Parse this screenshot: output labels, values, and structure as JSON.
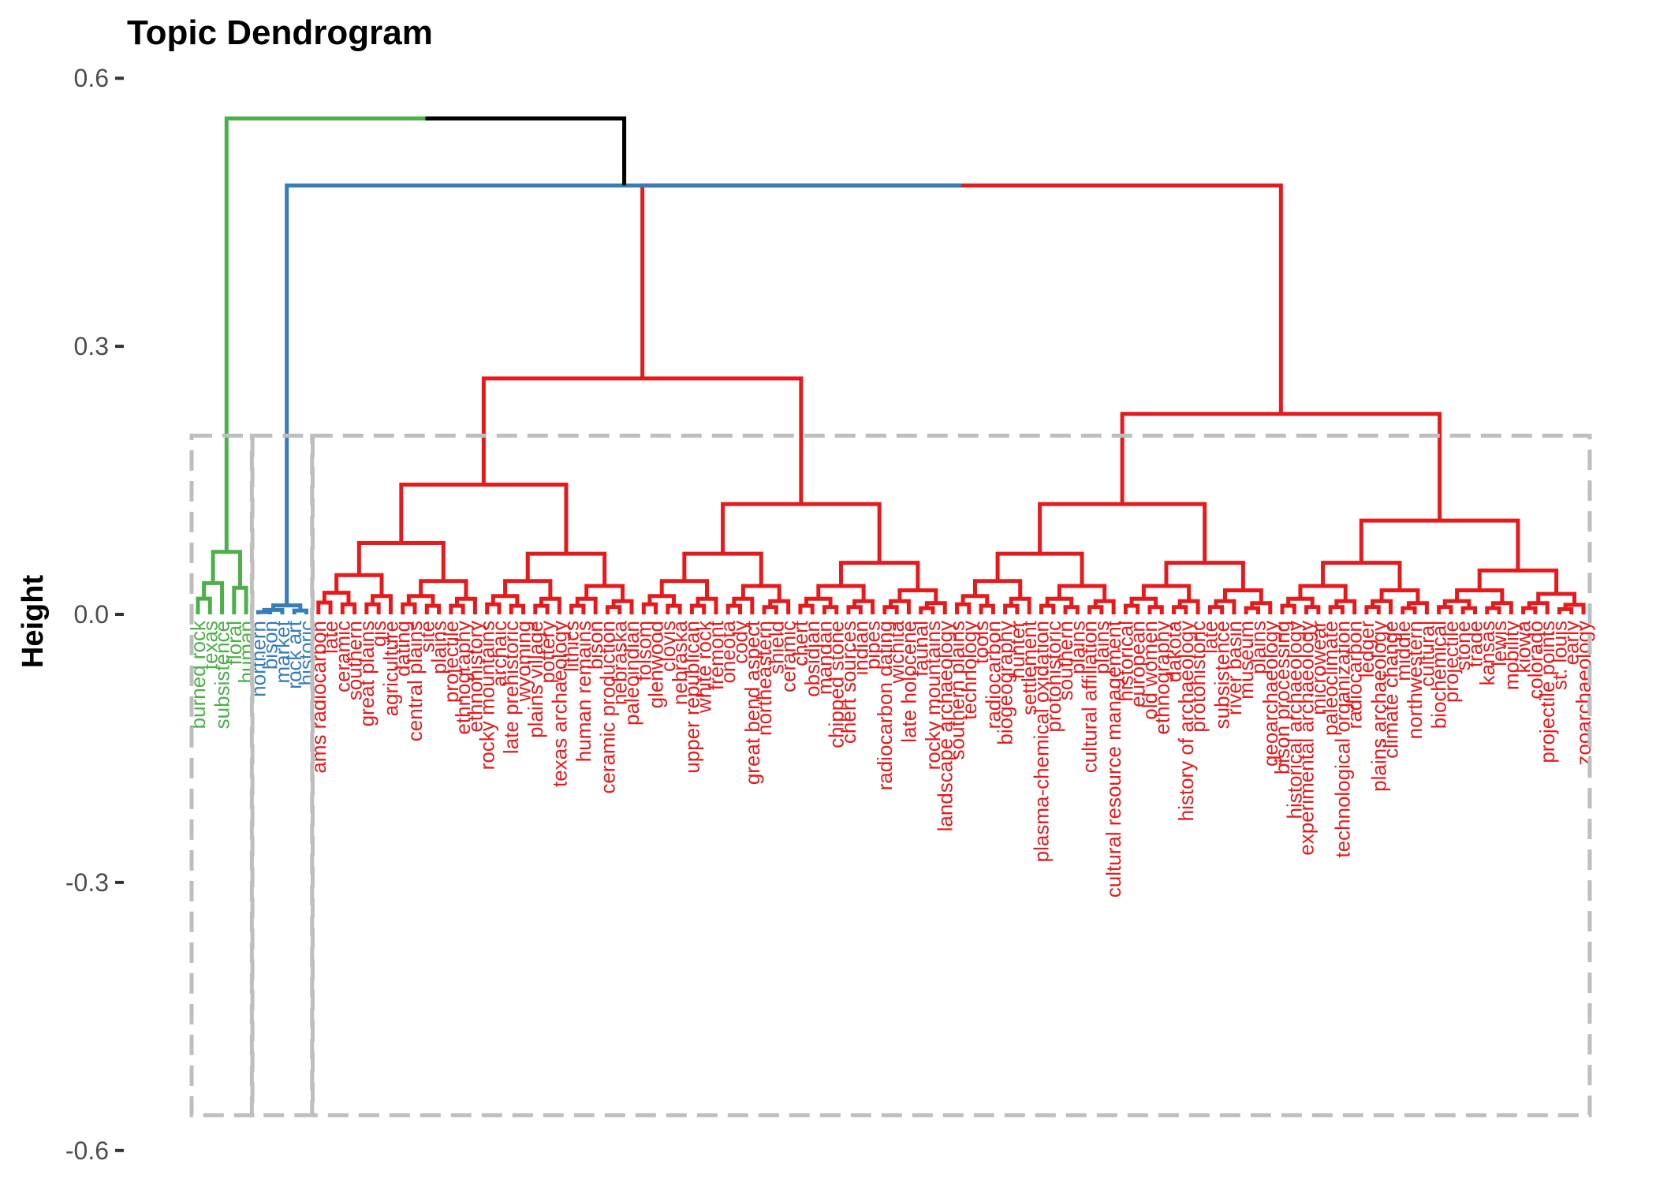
{
  "chart_data": {
    "type": "dendrogram",
    "title": "Topic Dendrogram",
    "xlabel": "",
    "ylabel": "Height",
    "ylim": [
      -0.6,
      0.6
    ],
    "y_ticks": [
      "0.6",
      "0.3",
      "0.0",
      "-0.3",
      "-0.6"
    ],
    "y_tick_values": [
      0.6,
      0.3,
      0.0,
      -0.3,
      -0.6
    ],
    "clusters": [
      {
        "color": "#4daf4a",
        "root_height": 0.07,
        "leaves": [
          "burned rock",
          "texas",
          "subsistence",
          "floral",
          "human"
        ]
      },
      {
        "color": "#377eb8",
        "root_height": 0.01,
        "leaves": [
          "northern",
          "bison",
          "market",
          "rock art",
          "historic"
        ]
      },
      {
        "color": "#e41a1c",
        "root_height": 0.48,
        "leaves": [
          "ams radiocarbon",
          "late",
          "ceramic",
          "southern",
          "great plains",
          "gis",
          "agriculture",
          "dating",
          "central plains",
          "site",
          "plains",
          "projectile",
          "ethnography",
          "ethnohistory",
          "rocky mountains",
          "archaic",
          "late prehistoric",
          "wyoming",
          "plains village",
          "pottery",
          "texas archaeology",
          "lithics",
          "human remains",
          "bison",
          "ceramic production",
          "nebraska",
          "paleoindian",
          "folsom",
          "glenwood",
          "clovis",
          "nebraska",
          "upper republican",
          "white rock",
          "fremont",
          "oneota",
          "cody",
          "great bend aspect",
          "northeastern",
          "shield",
          "ceramic",
          "chert",
          "obsidian",
          "mandan",
          "chipped stone",
          "chert sources",
          "indian",
          "pipes",
          "radiocarbon dating",
          "wichita",
          "late holocene",
          "faunal",
          "rocky mountains",
          "landscape archaeology",
          "southern plains",
          "technology",
          "tools",
          "radiocarbon",
          "biogeography",
          "hunter",
          "settlement",
          "plasma-chemical oxidation",
          "protohistoric",
          "southern",
          "plains",
          "cultural affiliation",
          "plains",
          "cultural resource management",
          "historical",
          "european",
          "old women",
          "ethnography",
          "dakota",
          "history of archaeology",
          "protohistoric",
          "late",
          "subsistence",
          "river basin",
          "museum",
          "plains",
          "geoarchaeology",
          "bison processing",
          "historical archaeology",
          "experimental archaeology",
          "microwear",
          "paleoclimate",
          "technological organization",
          "radiocarbon",
          "ledger",
          "plains archaeology",
          "climate change",
          "middle",
          "northwestern",
          "cultural",
          "biochemical",
          "projectile",
          "stone",
          "trade",
          "kansas",
          "lewis",
          "mobility",
          "kiowa",
          "colorado",
          "projectile points",
          "st. louis",
          "early",
          "zooarchaeology"
        ]
      }
    ],
    "threshold_height": 0.2
  }
}
